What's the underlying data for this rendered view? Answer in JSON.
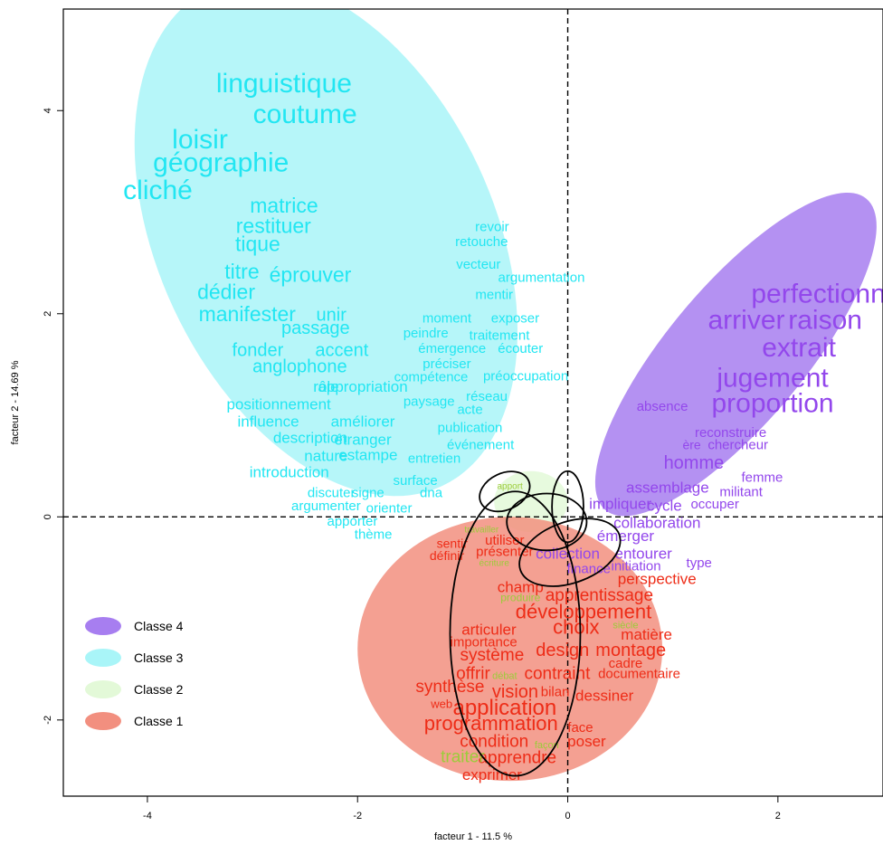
{
  "chart_data": {
    "type": "scatter",
    "xlabel": "facteur  1  -  11.5 %",
    "ylabel": "facteur  2  -  14.69 %",
    "xlim": [
      -4.8,
      3.0
    ],
    "ylim": [
      -2.75,
      5.0
    ],
    "x_ticks": [
      {
        "v": -4,
        "label": "-4"
      },
      {
        "v": -2,
        "label": "-2"
      },
      {
        "v": 0,
        "label": "0"
      },
      {
        "v": 2,
        "label": "2"
      }
    ],
    "y_ticks": [
      {
        "v": -2,
        "label": "-2"
      },
      {
        "v": 0,
        "label": "0"
      },
      {
        "v": 2,
        "label": "2"
      },
      {
        "v": 4,
        "label": "4"
      }
    ],
    "reference_lines": {
      "x": 0,
      "y": 0,
      "style": "dashed"
    },
    "legend": {
      "placement": "bottom-left",
      "entries": [
        {
          "label": "Classe 4",
          "color": "#a77ef0"
        },
        {
          "label": "Classe 3",
          "color": "#a9f5f8"
        },
        {
          "label": "Classe 2",
          "color": "#e3f9d8"
        },
        {
          "label": "Classe 1",
          "color": "#f28f7f"
        }
      ]
    },
    "regions": [
      {
        "class": "Classe 3",
        "color": "#a9f5f8",
        "cx": -2.3,
        "cy": 2.75,
        "rx": 1.6,
        "ry": 2.7,
        "rotate": -25
      },
      {
        "class": "Classe 4",
        "color": "#a77ef0",
        "cx": 1.6,
        "cy": 1.6,
        "rx": 0.65,
        "ry": 2.0,
        "rotate": 40
      },
      {
        "class": "Classe 2",
        "color": "#e3f9d8",
        "cx": -0.35,
        "cy": 0.15,
        "rx": 0.35,
        "ry": 0.3,
        "rotate": 0
      },
      {
        "class": "Classe 1",
        "color": "#f28f7f",
        "cx": -0.55,
        "cy": -1.3,
        "rx": 1.45,
        "ry": 1.3,
        "rotate": 0
      }
    ],
    "outline_ellipses": [
      {
        "cx": -0.5,
        "cy": -1.15,
        "rx": 0.62,
        "ry": 1.4,
        "rotate": 0
      },
      {
        "cx": -0.6,
        "cy": 0.25,
        "rx": 0.25,
        "ry": 0.18,
        "rotate": -25
      },
      {
        "cx": -0.2,
        "cy": -0.05,
        "rx": 0.38,
        "ry": 0.28,
        "rotate": 0
      },
      {
        "cx": 0.02,
        "cy": -0.35,
        "rx": 0.5,
        "ry": 0.3,
        "rotate": -20
      },
      {
        "cx": 0.0,
        "cy": 0.1,
        "rx": 0.15,
        "ry": 0.35,
        "rotate": 0
      }
    ],
    "series": [
      {
        "name": "Classe 3",
        "color": "#22e6f2",
        "points": [
          {
            "t": "linguistique",
            "x": -2.7,
            "y": 4.25,
            "s": 30
          },
          {
            "t": "coutume",
            "x": -2.5,
            "y": 3.95,
            "s": 30
          },
          {
            "t": "loisir",
            "x": -3.5,
            "y": 3.7,
            "s": 30
          },
          {
            "t": "géographie",
            "x": -3.3,
            "y": 3.47,
            "s": 30
          },
          {
            "t": "cliché",
            "x": -3.9,
            "y": 3.2,
            "s": 30
          },
          {
            "t": "matrice",
            "x": -2.7,
            "y": 3.05,
            "s": 23
          },
          {
            "t": "restituer",
            "x": -2.8,
            "y": 2.85,
            "s": 23
          },
          {
            "t": "tique",
            "x": -2.95,
            "y": 2.67,
            "s": 23
          },
          {
            "t": "titre",
            "x": -3.1,
            "y": 2.4,
            "s": 23
          },
          {
            "t": "éprouver",
            "x": -2.45,
            "y": 2.37,
            "s": 23
          },
          {
            "t": "dédier",
            "x": -3.25,
            "y": 2.2,
            "s": 23
          },
          {
            "t": "manifester",
            "x": -3.05,
            "y": 1.98,
            "s": 23
          },
          {
            "t": "unir",
            "x": -2.25,
            "y": 1.98,
            "s": 20
          },
          {
            "t": "passage",
            "x": -2.4,
            "y": 1.85,
            "s": 20
          },
          {
            "t": "fonder",
            "x": -2.95,
            "y": 1.63,
            "s": 20
          },
          {
            "t": "accent",
            "x": -2.15,
            "y": 1.63,
            "s": 20
          },
          {
            "t": "anglophone",
            "x": -2.55,
            "y": 1.47,
            "s": 20
          },
          {
            "t": "rôle",
            "x": -2.3,
            "y": 1.27,
            "s": 17
          },
          {
            "t": "appropriation",
            "x": -1.95,
            "y": 1.27,
            "s": 17
          },
          {
            "t": "positionnement",
            "x": -2.75,
            "y": 1.1,
            "s": 17
          },
          {
            "t": "influence",
            "x": -2.85,
            "y": 0.93,
            "s": 17
          },
          {
            "t": "améliorer",
            "x": -1.95,
            "y": 0.93,
            "s": 17
          },
          {
            "t": "description",
            "x": -2.45,
            "y": 0.77,
            "s": 17
          },
          {
            "t": "étranger",
            "x": -1.95,
            "y": 0.75,
            "s": 17
          },
          {
            "t": "nature",
            "x": -2.3,
            "y": 0.59,
            "s": 17
          },
          {
            "t": "estampe",
            "x": -1.9,
            "y": 0.6,
            "s": 17
          },
          {
            "t": "introduction",
            "x": -2.65,
            "y": 0.43,
            "s": 17
          },
          {
            "t": "discuter",
            "x": -2.25,
            "y": 0.23,
            "s": 15
          },
          {
            "t": "signe",
            "x": -1.9,
            "y": 0.23,
            "s": 15
          },
          {
            "t": "dna",
            "x": -1.3,
            "y": 0.23,
            "s": 15
          },
          {
            "t": "surface",
            "x": -1.45,
            "y": 0.35,
            "s": 15
          },
          {
            "t": "argumenter",
            "x": -2.3,
            "y": 0.1,
            "s": 15
          },
          {
            "t": "orienter",
            "x": -1.7,
            "y": 0.08,
            "s": 15
          },
          {
            "t": "apporter",
            "x": -2.05,
            "y": -0.05,
            "s": 15
          },
          {
            "t": "thème",
            "x": -1.85,
            "y": -0.18,
            "s": 15
          },
          {
            "t": "revoir",
            "x": -0.72,
            "y": 2.85,
            "s": 15
          },
          {
            "t": "retouche",
            "x": -0.82,
            "y": 2.7,
            "s": 15
          },
          {
            "t": "vecteur",
            "x": -0.85,
            "y": 2.48,
            "s": 15
          },
          {
            "t": "argumentation",
            "x": -0.25,
            "y": 2.35,
            "s": 15
          },
          {
            "t": "mentir",
            "x": -0.7,
            "y": 2.18,
            "s": 15
          },
          {
            "t": "moment",
            "x": -1.15,
            "y": 1.95,
            "s": 15
          },
          {
            "t": "exposer",
            "x": -0.5,
            "y": 1.95,
            "s": 15
          },
          {
            "t": "peindre",
            "x": -1.35,
            "y": 1.8,
            "s": 15
          },
          {
            "t": "traitement",
            "x": -0.65,
            "y": 1.78,
            "s": 15
          },
          {
            "t": "émergence",
            "x": -1.1,
            "y": 1.65,
            "s": 15
          },
          {
            "t": "écouter",
            "x": -0.45,
            "y": 1.65,
            "s": 15
          },
          {
            "t": "préciser",
            "x": -1.15,
            "y": 1.5,
            "s": 15
          },
          {
            "t": "compétence",
            "x": -1.3,
            "y": 1.37,
            "s": 15
          },
          {
            "t": "préoccupation",
            "x": -0.4,
            "y": 1.38,
            "s": 15
          },
          {
            "t": "réseau",
            "x": -0.77,
            "y": 1.18,
            "s": 15
          },
          {
            "t": "paysage",
            "x": -1.32,
            "y": 1.13,
            "s": 15
          },
          {
            "t": "acte",
            "x": -0.93,
            "y": 1.05,
            "s": 15
          },
          {
            "t": "publication",
            "x": -0.93,
            "y": 0.87,
            "s": 15
          },
          {
            "t": "événement",
            "x": -0.83,
            "y": 0.7,
            "s": 15
          },
          {
            "t": "entretien",
            "x": -1.27,
            "y": 0.57,
            "s": 15
          }
        ]
      },
      {
        "name": "Classe 4",
        "color": "#9347ec",
        "points": [
          {
            "t": "perfectionner",
            "x": 2.5,
            "y": 2.18,
            "s": 30
          },
          {
            "t": "arriver",
            "x": 1.7,
            "y": 1.92,
            "s": 30
          },
          {
            "t": "raison",
            "x": 2.45,
            "y": 1.92,
            "s": 30
          },
          {
            "t": "extrait",
            "x": 2.2,
            "y": 1.65,
            "s": 30
          },
          {
            "t": "jugement",
            "x": 1.95,
            "y": 1.35,
            "s": 30
          },
          {
            "t": "proportion",
            "x": 1.95,
            "y": 1.1,
            "s": 30
          },
          {
            "t": "absence",
            "x": 0.9,
            "y": 1.08,
            "s": 15
          },
          {
            "t": "reconstruire",
            "x": 1.55,
            "y": 0.82,
            "s": 15
          },
          {
            "t": "ère",
            "x": 1.18,
            "y": 0.7,
            "s": 14
          },
          {
            "t": "chercheur",
            "x": 1.62,
            "y": 0.7,
            "s": 15
          },
          {
            "t": "homme",
            "x": 1.2,
            "y": 0.52,
            "s": 20
          },
          {
            "t": "femme",
            "x": 1.85,
            "y": 0.38,
            "s": 15
          },
          {
            "t": "assemblage",
            "x": 0.95,
            "y": 0.28,
            "s": 17
          },
          {
            "t": "militant",
            "x": 1.65,
            "y": 0.24,
            "s": 15
          },
          {
            "t": "cycle",
            "x": 0.92,
            "y": 0.1,
            "s": 17
          },
          {
            "t": "occuper",
            "x": 1.4,
            "y": 0.12,
            "s": 15
          },
          {
            "t": "impliquer",
            "x": 0.5,
            "y": 0.12,
            "s": 17
          },
          {
            "t": "collaboration",
            "x": 0.85,
            "y": -0.07,
            "s": 17
          },
          {
            "t": "émerger",
            "x": 0.55,
            "y": -0.2,
            "s": 17
          },
          {
            "t": "entourer",
            "x": 0.72,
            "y": -0.37,
            "s": 17
          },
          {
            "t": "initiation",
            "x": 0.65,
            "y": -0.49,
            "s": 15
          },
          {
            "t": "type",
            "x": 1.25,
            "y": -0.46,
            "s": 15
          },
          {
            "t": "collection",
            "x": 0.0,
            "y": -0.37,
            "s": 17
          },
          {
            "t": "finance",
            "x": 0.2,
            "y": -0.52,
            "s": 15
          }
        ]
      },
      {
        "name": "Classe 1",
        "color": "#ee2c17",
        "points": [
          {
            "t": "sentir",
            "x": -1.1,
            "y": -0.27,
            "s": 14
          },
          {
            "t": "définir",
            "x": -1.15,
            "y": -0.39,
            "s": 14
          },
          {
            "t": "utiliser",
            "x": -0.6,
            "y": -0.24,
            "s": 15
          },
          {
            "t": "présenter",
            "x": -0.6,
            "y": -0.35,
            "s": 15
          },
          {
            "t": "perspective",
            "x": 0.85,
            "y": -0.62,
            "s": 17
          },
          {
            "t": "champ",
            "x": -0.45,
            "y": -0.7,
            "s": 17
          },
          {
            "t": "apprentissage",
            "x": 0.3,
            "y": -0.78,
            "s": 19
          },
          {
            "t": "développement",
            "x": 0.15,
            "y": -0.95,
            "s": 22
          },
          {
            "t": "articuler",
            "x": -0.75,
            "y": -1.12,
            "s": 17
          },
          {
            "t": "choix",
            "x": 0.08,
            "y": -1.1,
            "s": 22
          },
          {
            "t": "matière",
            "x": 0.75,
            "y": -1.17,
            "s": 17
          },
          {
            "t": "importance",
            "x": -0.8,
            "y": -1.24,
            "s": 15
          },
          {
            "t": "système",
            "x": -0.72,
            "y": -1.37,
            "s": 19
          },
          {
            "t": "design",
            "x": -0.05,
            "y": -1.32,
            "s": 20
          },
          {
            "t": "montage",
            "x": 0.6,
            "y": -1.32,
            "s": 20
          },
          {
            "t": "cadre",
            "x": 0.55,
            "y": -1.45,
            "s": 15
          },
          {
            "t": "offrir",
            "x": -0.9,
            "y": -1.55,
            "s": 19
          },
          {
            "t": "contraint",
            "x": -0.1,
            "y": -1.55,
            "s": 19
          },
          {
            "t": "documentaire",
            "x": 0.68,
            "y": -1.55,
            "s": 15
          },
          {
            "t": "synthèse",
            "x": -1.12,
            "y": -1.68,
            "s": 19
          },
          {
            "t": "vision",
            "x": -0.5,
            "y": -1.73,
            "s": 20
          },
          {
            "t": "bilan",
            "x": -0.12,
            "y": -1.73,
            "s": 15
          },
          {
            "t": "dessiner",
            "x": 0.35,
            "y": -1.77,
            "s": 17
          },
          {
            "t": "web",
            "x": -1.2,
            "y": -1.85,
            "s": 13
          },
          {
            "t": "application",
            "x": -0.6,
            "y": -1.89,
            "s": 24
          },
          {
            "t": "programmation",
            "x": -0.73,
            "y": -2.05,
            "s": 22
          },
          {
            "t": "face",
            "x": 0.12,
            "y": -2.08,
            "s": 15
          },
          {
            "t": "condition",
            "x": -0.7,
            "y": -2.22,
            "s": 19
          },
          {
            "t": "poser",
            "x": 0.18,
            "y": -2.22,
            "s": 17
          },
          {
            "t": "apprendre",
            "x": -0.48,
            "y": -2.38,
            "s": 19
          },
          {
            "t": "exprimer",
            "x": -0.72,
            "y": -2.55,
            "s": 17
          }
        ]
      },
      {
        "name": "Classe 2",
        "color": "#9bcc3a",
        "points": [
          {
            "t": "apport",
            "x": -0.55,
            "y": 0.3,
            "s": 10
          },
          {
            "t": "produire",
            "x": -0.45,
            "y": -0.8,
            "s": 12
          },
          {
            "t": "écriture",
            "x": -0.7,
            "y": -0.46,
            "s": 10
          },
          {
            "t": "traiter",
            "x": -1.0,
            "y": -2.37,
            "s": 19
          },
          {
            "t": "travailler",
            "x": -0.82,
            "y": -0.13,
            "s": 10
          },
          {
            "t": "siècle",
            "x": 0.55,
            "y": -1.07,
            "s": 11
          },
          {
            "t": "débat",
            "x": -0.6,
            "y": -1.57,
            "s": 11
          },
          {
            "t": "façon",
            "x": -0.2,
            "y": -2.25,
            "s": 11
          }
        ]
      }
    ]
  }
}
